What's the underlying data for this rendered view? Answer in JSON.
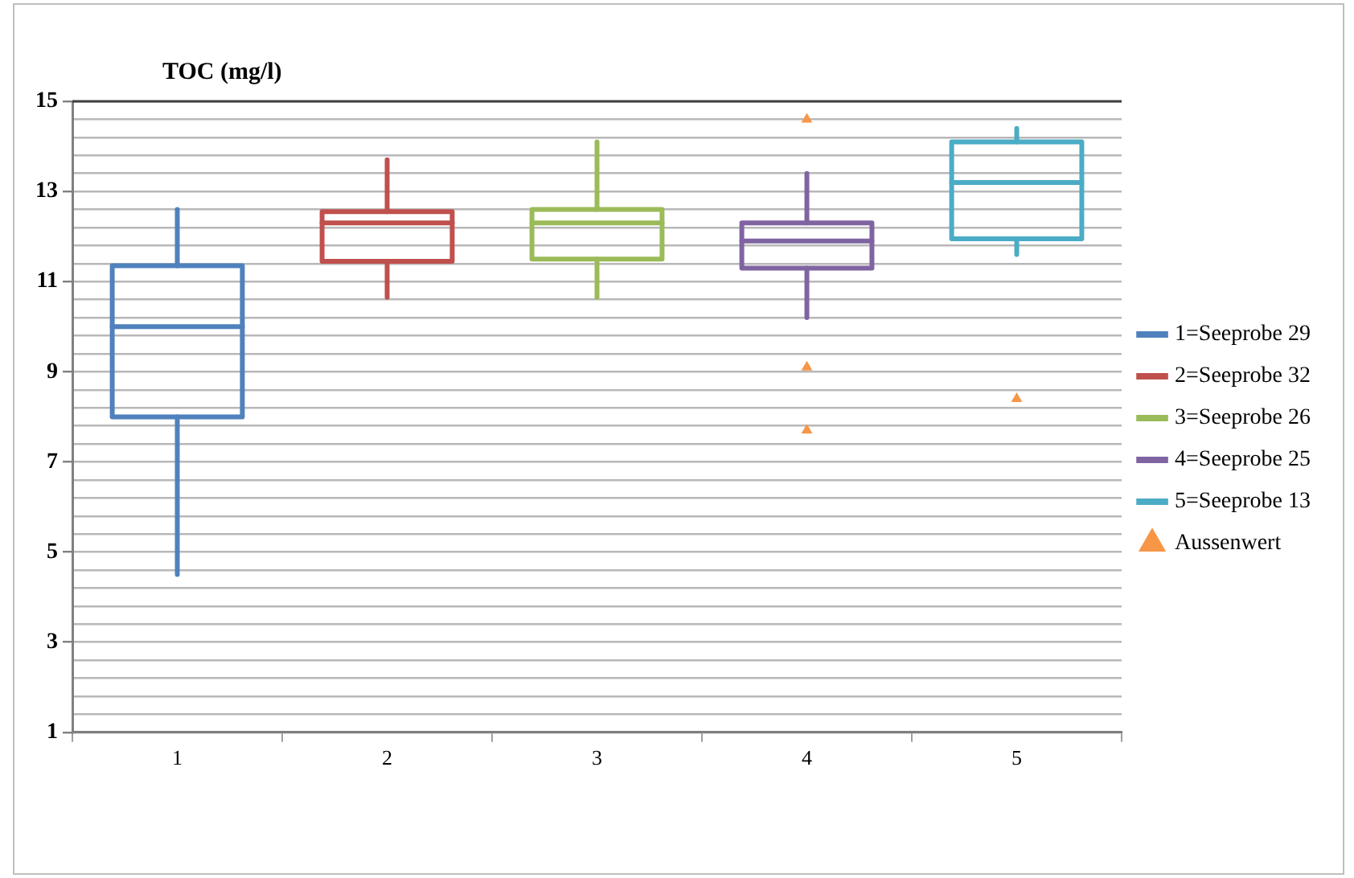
{
  "chart_data": {
    "type": "box",
    "ylabel": "TOC (mg/l)",
    "categories": [
      "1",
      "2",
      "3",
      "4",
      "5"
    ],
    "ylim": [
      1,
      15
    ],
    "yticks": [
      1,
      {
        "value": 1.4,
        "label": null
      },
      {
        "value": 1.8,
        "label": null
      },
      {
        "value": 2.2,
        "label": null
      },
      {
        "value": 2.6,
        "label": null
      },
      3,
      {
        "value": 3.4,
        "label": null
      },
      {
        "value": 3.8,
        "label": null
      },
      {
        "value": 4.2,
        "label": null
      },
      {
        "value": 4.6,
        "label": null
      },
      5,
      {
        "value": 5.4,
        "label": null
      },
      {
        "value": 5.8,
        "label": null
      },
      {
        "value": 6.2,
        "label": null
      },
      {
        "value": 6.6,
        "label": null
      },
      7,
      {
        "value": 7.4,
        "label": null
      },
      {
        "value": 7.8,
        "label": null
      },
      {
        "value": 8.2,
        "label": null
      },
      {
        "value": 8.6,
        "label": null
      },
      9,
      {
        "value": 9.4,
        "label": null
      },
      {
        "value": 9.8,
        "label": null
      },
      {
        "value": 10.2,
        "label": null
      },
      {
        "value": 10.6,
        "label": null
      },
      11,
      {
        "value": 11.4,
        "label": null
      },
      {
        "value": 11.8,
        "label": null
      },
      {
        "value": 12.2,
        "label": null
      },
      {
        "value": 12.6,
        "label": null
      },
      13,
      {
        "value": 13.4,
        "label": null
      },
      {
        "value": 13.8,
        "label": null
      },
      {
        "value": 14.2,
        "label": null
      },
      {
        "value": 14.6,
        "label": null
      },
      15
    ],
    "grid": "y",
    "legend": "right",
    "series": [
      {
        "name": "1=Seeprobe 29",
        "color": "#4f81bd",
        "boxes": [
          {
            "low": 4.5,
            "q1": 8.0,
            "median": 10.0,
            "q3": 11.35,
            "high": 12.6
          },
          null,
          null,
          null,
          null
        ]
      },
      {
        "name": "2=Seeprobe 32",
        "color": "#c0504d",
        "boxes": [
          null,
          {
            "low": 10.65,
            "q1": 11.45,
            "median": 12.3,
            "q3": 12.55,
            "high": 13.7
          },
          null,
          null,
          null
        ]
      },
      {
        "name": "3=Seeprobe 26",
        "color": "#9bbb59",
        "boxes": [
          null,
          null,
          {
            "low": 10.65,
            "q1": 11.5,
            "median": 12.3,
            "q3": 12.6,
            "high": 14.1
          },
          null,
          null
        ]
      },
      {
        "name": "4=Seeprobe 25",
        "color": "#8064a2",
        "boxes": [
          null,
          null,
          null,
          {
            "low": 10.2,
            "q1": 11.3,
            "median": 11.9,
            "q3": 12.3,
            "high": 13.4
          },
          null
        ]
      },
      {
        "name": "5=Seeprobe 13",
        "color": "#4bacc6",
        "boxes": [
          null,
          null,
          null,
          null,
          {
            "low": 11.6,
            "q1": 11.95,
            "median": 13.2,
            "q3": 14.1,
            "high": 14.4
          }
        ]
      },
      {
        "name": "Aussenwert",
        "type": "scatter",
        "marker": "triangle",
        "color": "#f79646",
        "x": [
          "4",
          "4",
          "4",
          "5"
        ],
        "values": [
          14.6,
          9.1,
          7.7,
          8.4
        ]
      }
    ]
  }
}
